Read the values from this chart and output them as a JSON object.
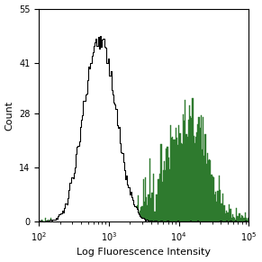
{
  "xlabel": "Log Fluorescence Intensity",
  "ylabel": "Count",
  "xscale": "log",
  "xlim": [
    100,
    100000
  ],
  "ylim": [
    0,
    55
  ],
  "yticks": [
    0,
    14,
    28,
    41,
    55
  ],
  "bg_color": "#ffffff",
  "control_color": "#000000",
  "antibody_color": "#2e7a2e",
  "control_peak_log": 2.88,
  "control_peak_height": 48,
  "antibody_peak_log": 4.1,
  "antibody_peak_height": 32,
  "figsize": [
    2.91,
    2.91
  ],
  "dpi": 100
}
